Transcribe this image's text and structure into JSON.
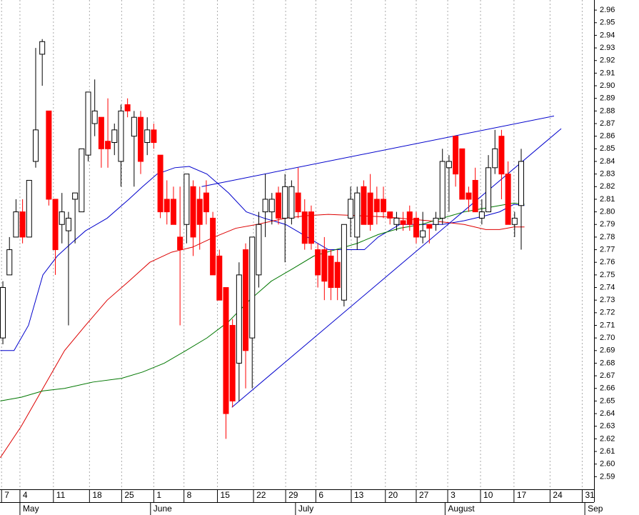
{
  "chart_data": {
    "type": "candlestick",
    "x": [
      0,
      1,
      2,
      3,
      4,
      5,
      6,
      7,
      8,
      9,
      10,
      11,
      12,
      13,
      14,
      15,
      16,
      17,
      18,
      19,
      20,
      21,
      22,
      23,
      24,
      25,
      26,
      27,
      28,
      29,
      30,
      31,
      32,
      33,
      34,
      35,
      36,
      37,
      38,
      39,
      40,
      41,
      42,
      43,
      44,
      45,
      46,
      47,
      48,
      49,
      50,
      51,
      52,
      53,
      54,
      55,
      56,
      57,
      58,
      59,
      60,
      61,
      62,
      63,
      64,
      65,
      66,
      67,
      68,
      69,
      70,
      71,
      72,
      73,
      74,
      75,
      76,
      77,
      78,
      79
    ],
    "open": [
      2.7,
      2.75,
      2.78,
      2.8,
      2.78,
      2.84,
      2.925,
      2.88,
      2.81,
      2.79,
      2.785,
      2.81,
      2.8,
      2.845,
      2.87,
      2.875,
      2.856,
      2.855,
      2.84,
      2.885,
      2.86,
      2.875,
      2.855,
      2.865,
      2.845,
      2.81,
      2.81,
      2.78,
      2.79,
      2.82,
      2.81,
      2.815,
      2.795,
      2.765,
      2.74,
      2.71,
      2.68,
      2.77,
      2.7,
      2.75,
      2.8,
      2.8,
      2.815,
      2.795,
      2.795,
      2.815,
      2.8,
      2.8,
      2.77,
      2.77,
      2.765,
      2.76,
      2.73,
      2.795,
      2.78,
      2.82,
      2.815,
      2.81,
      2.81,
      2.8,
      2.79,
      2.793,
      2.8,
      2.795,
      2.78,
      2.79,
      2.79,
      2.795,
      2.835,
      2.86,
      2.85,
      2.815,
      2.825,
      2.795,
      2.8,
      2.835,
      2.86,
      2.83,
      2.79,
      2.805
    ],
    "high": [
      2.745,
      2.78,
      2.81,
      2.81,
      2.825,
      2.93,
      2.937,
      2.88,
      2.81,
      2.815,
      2.8,
      2.815,
      2.85,
      2.895,
      2.905,
      2.875,
      2.89,
      2.87,
      2.885,
      2.89,
      2.88,
      2.88,
      2.875,
      2.87,
      2.845,
      2.825,
      2.82,
      2.82,
      2.83,
      2.825,
      2.82,
      2.825,
      2.8,
      2.77,
      2.74,
      2.715,
      2.76,
      2.775,
      2.78,
      2.8,
      2.83,
      2.815,
      2.82,
      2.83,
      2.825,
      2.835,
      2.81,
      2.805,
      2.775,
      2.78,
      2.77,
      2.77,
      2.79,
      2.82,
      2.82,
      2.825,
      2.83,
      2.82,
      2.82,
      2.8,
      2.8,
      2.8,
      2.805,
      2.8,
      2.8,
      2.79,
      2.8,
      2.85,
      2.845,
      2.86,
      2.85,
      2.82,
      2.835,
      2.81,
      2.845,
      2.865,
      2.865,
      2.84,
      2.8,
      2.85
    ],
    "low": [
      2.695,
      2.75,
      2.78,
      2.775,
      2.78,
      2.835,
      2.9,
      2.805,
      2.75,
      2.775,
      2.71,
      2.775,
      2.8,
      2.84,
      2.86,
      2.835,
      2.835,
      2.845,
      2.82,
      2.875,
      2.82,
      2.83,
      2.845,
      2.85,
      2.795,
      2.79,
      2.79,
      2.71,
      2.775,
      2.765,
      2.77,
      2.79,
      2.75,
      2.73,
      2.62,
      2.645,
      2.65,
      2.66,
      2.66,
      2.74,
      2.78,
      2.79,
      2.79,
      2.76,
      2.79,
      2.795,
      2.77,
      2.77,
      2.74,
      2.73,
      2.73,
      2.73,
      2.725,
      2.78,
      2.77,
      2.79,
      2.785,
      2.79,
      2.795,
      2.79,
      2.785,
      2.785,
      2.785,
      2.775,
      2.775,
      2.775,
      2.785,
      2.79,
      2.8,
      2.82,
      2.81,
      2.8,
      2.8,
      2.79,
      2.8,
      2.83,
      2.81,
      2.79,
      2.78,
      2.77
    ],
    "close": [
      2.74,
      2.77,
      2.8,
      2.78,
      2.825,
      2.865,
      2.935,
      2.81,
      2.77,
      2.8,
      2.795,
      2.815,
      2.85,
      2.895,
      2.88,
      2.85,
      2.85,
      2.865,
      2.88,
      2.88,
      2.875,
      2.84,
      2.865,
      2.855,
      2.8,
      2.8,
      2.79,
      2.77,
      2.83,
      2.78,
      2.79,
      2.8,
      2.75,
      2.73,
      2.64,
      2.65,
      2.75,
      2.69,
      2.78,
      2.79,
      2.81,
      2.81,
      2.795,
      2.82,
      2.82,
      2.8,
      2.775,
      2.775,
      2.75,
      2.745,
      2.74,
      2.74,
      2.79,
      2.81,
      2.815,
      2.79,
      2.79,
      2.8,
      2.8,
      2.795,
      2.795,
      2.79,
      2.79,
      2.78,
      2.785,
      2.787,
      2.795,
      2.84,
      2.84,
      2.83,
      2.81,
      2.81,
      2.8,
      2.8,
      2.835,
      2.85,
      2.83,
      2.79,
      2.795,
      2.84
    ],
    "up_color": "#ffffff",
    "down_color": "#ff0000",
    "lines": [
      {
        "color": "#0000cc",
        "x": [
          -0.4,
          1.7,
          3.9,
          6.1,
          8.3,
          10.4,
          12.6,
          15.9,
          19.2,
          21.3,
          23.5,
          26.2,
          28.4,
          31.1,
          34.4,
          37.1,
          39.8,
          43.1,
          46.4,
          49.6,
          52.9,
          55.1,
          57.2,
          60.5,
          63.8,
          67.0,
          70.3,
          73.6,
          75.7,
          77.9,
          79.5
        ],
        "values": [
          2.69,
          2.69,
          2.71,
          2.75,
          2.765,
          2.775,
          2.785,
          2.795,
          2.81,
          2.82,
          2.83,
          2.835,
          2.836,
          2.83,
          2.815,
          2.8,
          2.795,
          2.79,
          2.78,
          2.77,
          2.77,
          2.77,
          2.78,
          2.79,
          2.79,
          2.79,
          2.793,
          2.797,
          2.8,
          2.806,
          2.805
        ]
      },
      {
        "color": "#dd0000",
        "x": [
          -0.4,
          2.8,
          6.1,
          9.4,
          12.6,
          15.9,
          19.2,
          22.4,
          25.7,
          28.9,
          32.2,
          35.5,
          38.7,
          43.1,
          46.4,
          49.6,
          54.0,
          58.3,
          62.7,
          67.0,
          70.3,
          73.6,
          75.7,
          77.9,
          79.5
        ],
        "values": [
          2.605,
          2.63,
          2.66,
          2.69,
          2.71,
          2.73,
          2.745,
          2.76,
          2.768,
          2.772,
          2.78,
          2.787,
          2.79,
          2.795,
          2.797,
          2.798,
          2.797,
          2.796,
          2.794,
          2.792,
          2.79,
          2.786,
          2.786,
          2.788,
          2.788
        ]
      },
      {
        "color": "#007700",
        "x": [
          -0.4,
          2.8,
          6.1,
          9.4,
          13.7,
          18.1,
          21.3,
          24.6,
          27.9,
          31.1,
          34.4,
          37.6,
          40.9,
          44.2,
          47.4,
          50.7,
          54.0,
          57.2,
          60.5,
          63.8,
          67.0,
          70.3,
          73.6,
          75.7,
          77.9,
          79.5
        ],
        "values": [
          2.65,
          2.653,
          2.658,
          2.66,
          2.665,
          2.668,
          2.673,
          2.68,
          2.69,
          2.7,
          2.713,
          2.73,
          2.745,
          2.755,
          2.765,
          2.77,
          2.775,
          2.782,
          2.787,
          2.79,
          2.795,
          2.8,
          2.803,
          2.805,
          2.807,
          2.806
        ]
      }
    ],
    "trendlines": [
      {
        "color": "#0000cc",
        "x": [
          30.3,
          84.0
        ],
        "values": [
          2.82,
          2.876
        ]
      },
      {
        "color": "#0000cc",
        "x": [
          34.9,
          85.1
        ],
        "values": [
          2.645,
          2.866
        ]
      }
    ],
    "xlim": [
      -0.44,
      90.1
    ],
    "ylim": [
      2.58,
      2.968
    ],
    "xticks": [
      {
        "value": -0.2,
        "label": "7"
      },
      {
        "value": 2.6,
        "label": "4"
      },
      {
        "value": 7.7,
        "label": "11"
      },
      {
        "value": 13.2,
        "label": "18"
      },
      {
        "value": 18.1,
        "label": "25"
      },
      {
        "value": 23,
        "label": "1"
      },
      {
        "value": 27.6,
        "label": "8"
      },
      {
        "value": 32.7,
        "label": "15"
      },
      {
        "value": 38.2,
        "label": "22"
      },
      {
        "value": 43.1,
        "label": "29"
      },
      {
        "value": 47.7,
        "label": "6"
      },
      {
        "value": 53.1,
        "label": "13"
      },
      {
        "value": 58.3,
        "label": "20"
      },
      {
        "value": 63,
        "label": "27"
      },
      {
        "value": 67.8,
        "label": "3"
      },
      {
        "value": 72.8,
        "label": "10"
      },
      {
        "value": 77.9,
        "label": "17"
      },
      {
        "value": 83.4,
        "label": "24"
      },
      {
        "value": 88.3,
        "label": "31"
      }
    ],
    "month_ticks": [
      {
        "value": 2.6,
        "label": "May"
      },
      {
        "value": 22.5,
        "label": "June"
      },
      {
        "value": 44.6,
        "label": "July"
      },
      {
        "value": 67.4,
        "label": "August"
      },
      {
        "value": 88.7,
        "label": "Sep"
      }
    ],
    "yticks": [
      2.59,
      {
        "value": 2.6,
        "label": "2.60"
      },
      2.61,
      2.62,
      2.63,
      2.64,
      2.65,
      2.66,
      2.67,
      2.68,
      2.69,
      {
        "value": 2.7,
        "label": "2.70"
      },
      2.71,
      2.72,
      2.73,
      2.74,
      2.75,
      2.76,
      2.77,
      2.78,
      2.79,
      {
        "value": 2.8,
        "label": "2.80"
      },
      2.81,
      2.82,
      2.83,
      2.84,
      2.85,
      2.86,
      2.87,
      2.88,
      2.89,
      {
        "value": 2.9,
        "label": "2.90"
      },
      2.91,
      2.92,
      2.93,
      2.94,
      2.95,
      2.96
    ],
    "grid": "x"
  }
}
